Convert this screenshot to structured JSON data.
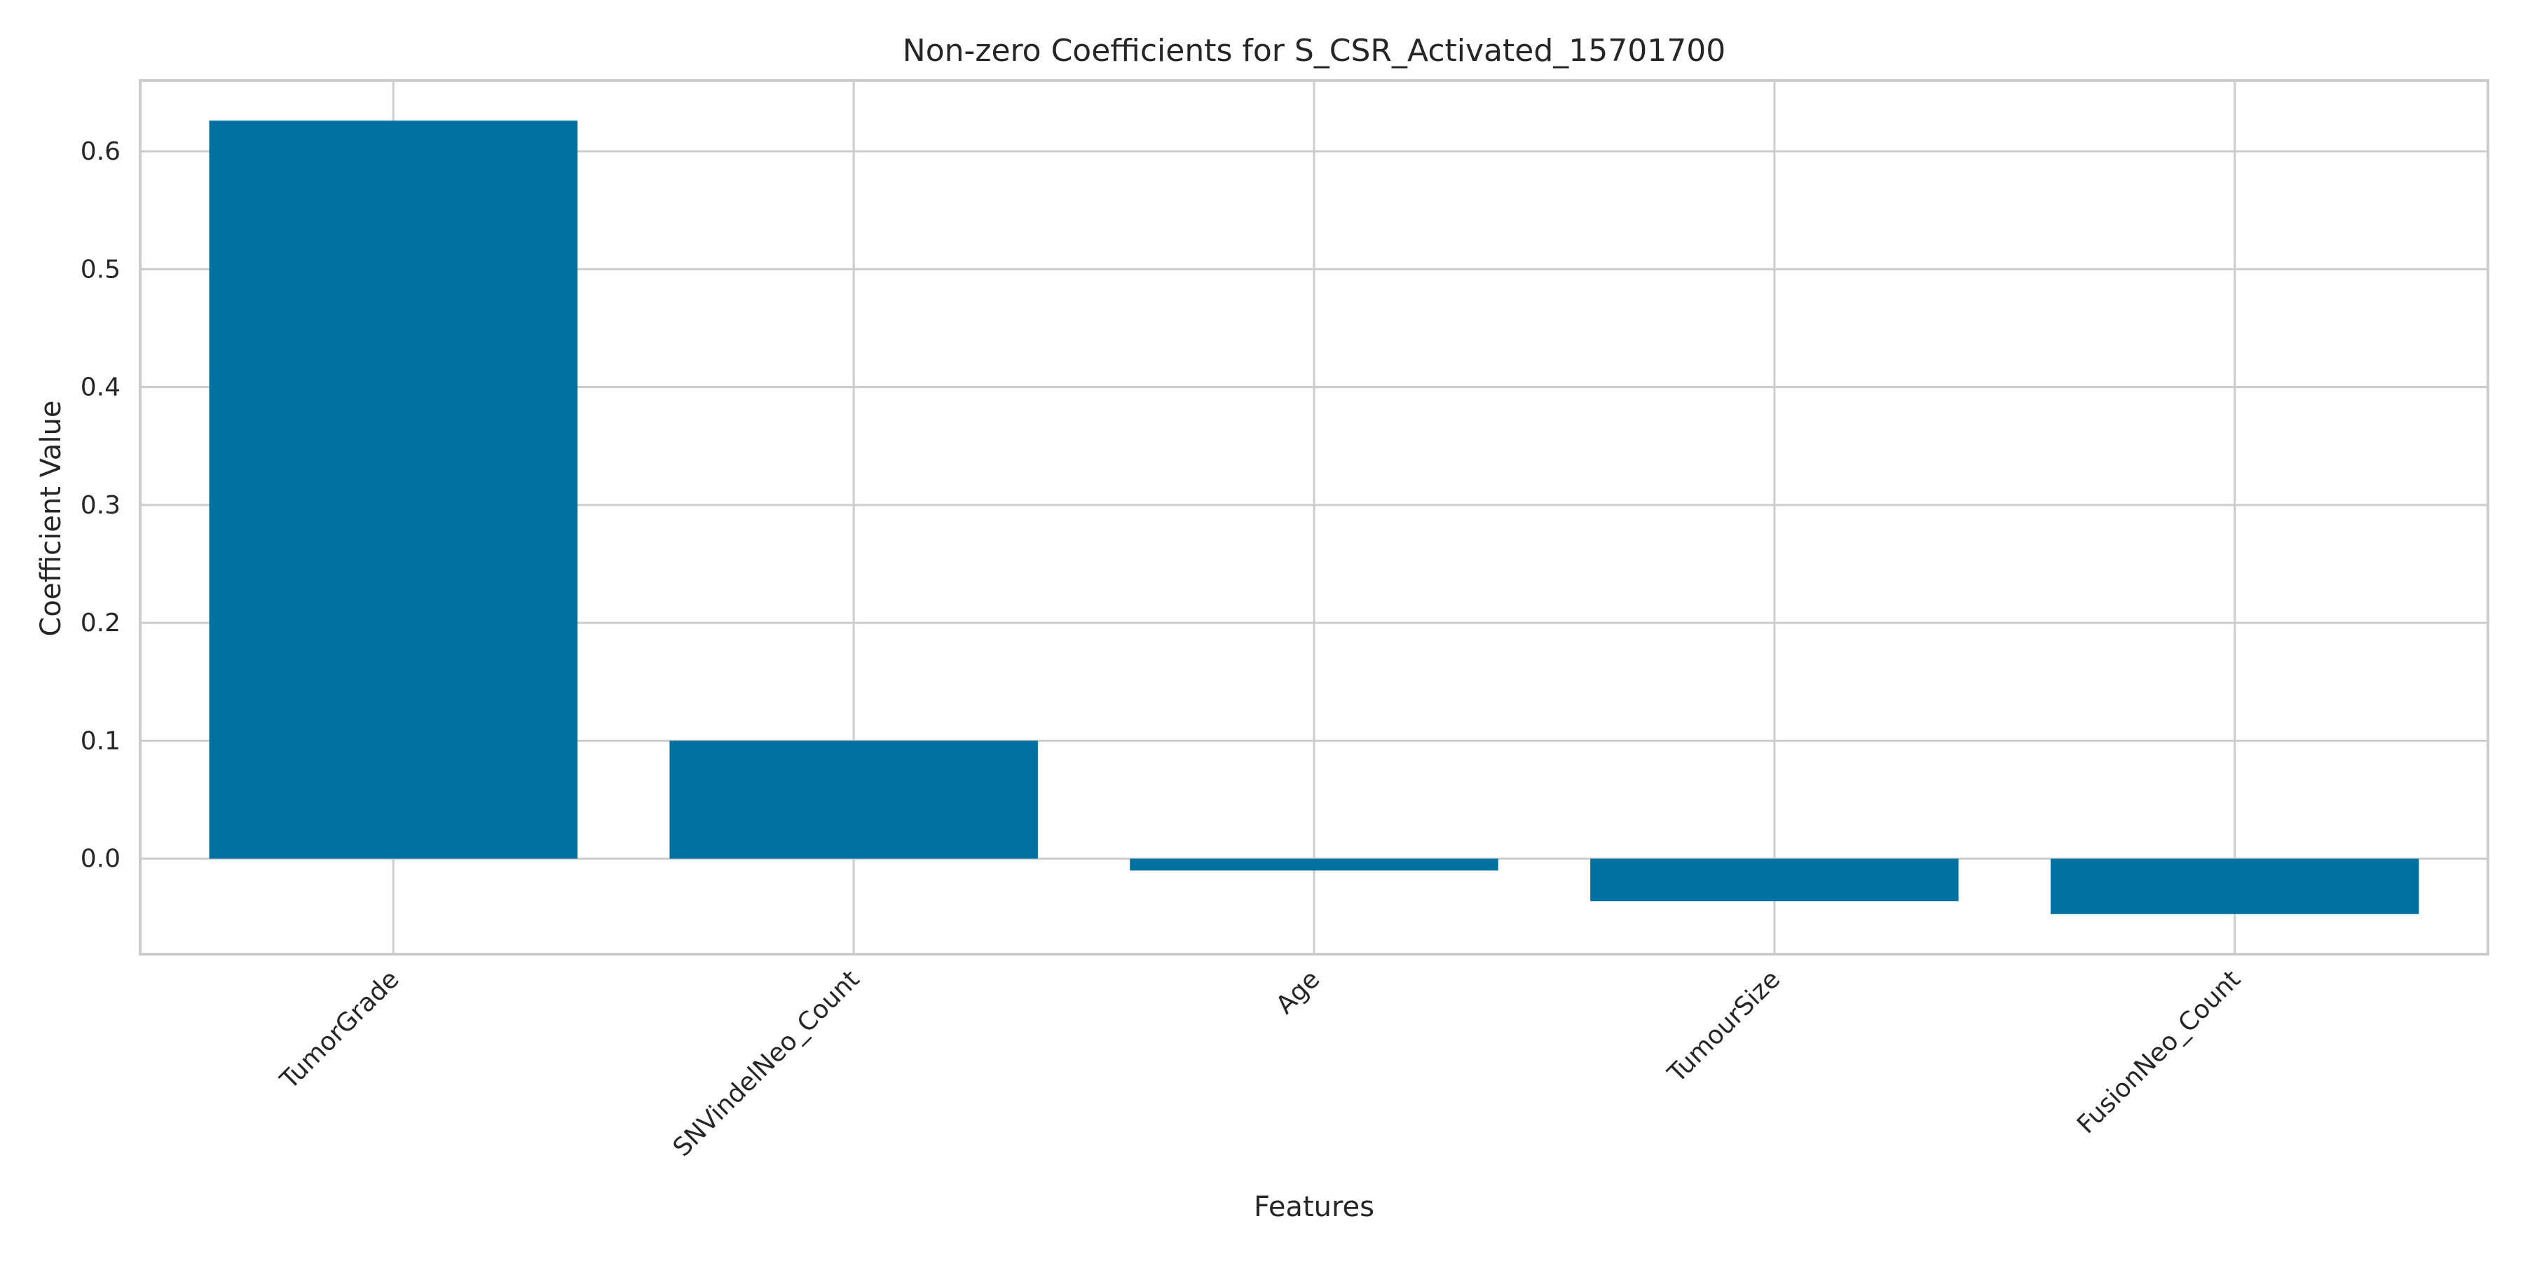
{
  "chart_data": {
    "type": "bar",
    "title": "Non-zero Coefficients for S_CSR_Activated_15701700",
    "xlabel": "Features",
    "ylabel": "Coefficient Value",
    "categories": [
      "TumorGrade",
      "SNVindelNeo_Count",
      "Age",
      "TumourSize",
      "FusionNeo_Count"
    ],
    "values": [
      0.626,
      0.1,
      -0.01,
      -0.036,
      -0.047
    ],
    "ylim": [
      -0.081,
      0.66
    ],
    "yticks": [
      0.0,
      0.1,
      0.2,
      0.3,
      0.4,
      0.5,
      0.6
    ],
    "ytick_labels": [
      "0.0",
      "0.1",
      "0.2",
      "0.3",
      "0.4",
      "0.5",
      "0.6"
    ],
    "bar_color": "#0072a2",
    "grid": true,
    "legend": "none"
  }
}
